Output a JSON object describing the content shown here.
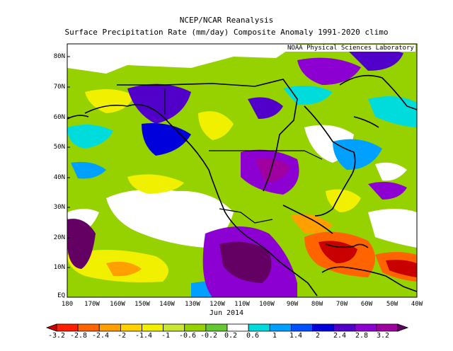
{
  "title_line1": "NCEP/NCAR Reanalysis",
  "title_line2": "Surface Precipitation Rate (mm/day) Composite Anomaly 1991-2020 climo",
  "credit": "NOAA Physical Sciences Laboratory",
  "date": "Jun 2014",
  "lat_labels": [
    "80N",
    "70N",
    "60N",
    "50N",
    "40N",
    "30N",
    "20N",
    "10N",
    "EQ"
  ],
  "lon_labels": [
    "180",
    "170W",
    "160W",
    "150W",
    "140W",
    "130W",
    "120W",
    "110W",
    "100W",
    "90W",
    "80W",
    "70W",
    "60W",
    "50W",
    "40W"
  ],
  "colorbar": {
    "labels": [
      "-3.2",
      "-2.8",
      "-2.4",
      "-2",
      "-1.4",
      "-1",
      "-0.6",
      "-0.2",
      "0.2",
      "0.6",
      "1",
      "1.4",
      "2",
      "2.4",
      "2.8",
      "3.2"
    ],
    "colors": [
      "#c80000",
      "#ff1e00",
      "#ff6400",
      "#ffa000",
      "#ffd200",
      "#f0f000",
      "#c8e632",
      "#96d200",
      "#64c832",
      "#ffffff",
      "#00dcdc",
      "#00a0ff",
      "#0050ff",
      "#0000dc",
      "#5000c8",
      "#8c00d2",
      "#a000a0",
      "#640064"
    ]
  },
  "color_scale": {
    "strong_wet": "#640064",
    "wet": "#8c00d2",
    "moderate_wet": "#0000dc",
    "light_wet": "#00a0ff",
    "neutral": "#ffffff",
    "light_dry": "#96d200",
    "dry": "#f0f000",
    "strong_dry": "#ff6400",
    "very_dry": "#c80000"
  }
}
